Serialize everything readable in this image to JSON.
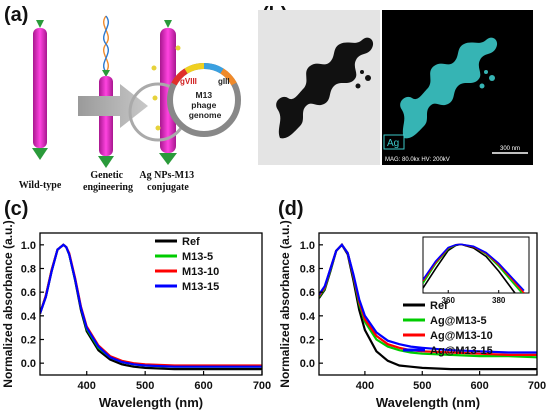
{
  "panels": {
    "a": {
      "label": "(a)",
      "stages": [
        "Wild-type",
        "Genetic\nengineering",
        "Ag NPs-M13\nconjugate"
      ],
      "genome": {
        "title": "M13\nphage\ngenome",
        "gene_viii": "gVIII",
        "gene_iii": "gIII"
      }
    },
    "b": {
      "label": "(b)",
      "map_label": "Ag",
      "footer": "MAG: 80.0kx  HV: 200kV",
      "scale": "300 nm"
    }
  },
  "chart_data": [
    {
      "panel_label": "(c)",
      "type": "line",
      "xlabel": "Wavelength (nm)",
      "ylabel": "Normalized absorbance (a.u.)",
      "xlim": [
        320,
        700
      ],
      "ylim": [
        -0.1,
        1.1
      ],
      "xticks": [
        400,
        500,
        600,
        700
      ],
      "yticks": [
        0.0,
        0.2,
        0.4,
        0.6,
        0.8,
        1.0
      ],
      "legend_position": "right",
      "series": [
        {
          "name": "Ref",
          "color": "#000000",
          "x": [
            320,
            330,
            340,
            350,
            360,
            365,
            370,
            380,
            390,
            400,
            420,
            440,
            460,
            480,
            500,
            550,
            600,
            650,
            700
          ],
          "y": [
            0.42,
            0.56,
            0.78,
            0.96,
            1.0,
            0.98,
            0.92,
            0.7,
            0.45,
            0.27,
            0.11,
            0.03,
            -0.01,
            -0.03,
            -0.04,
            -0.05,
            -0.05,
            -0.05,
            -0.05
          ]
        },
        {
          "name": "M13-5",
          "color": "#00cc00",
          "x": [
            320,
            330,
            340,
            350,
            360,
            365,
            370,
            380,
            390,
            400,
            420,
            440,
            460,
            480,
            500,
            550,
            600,
            650,
            700
          ],
          "y": [
            0.42,
            0.57,
            0.79,
            0.96,
            1.0,
            0.98,
            0.92,
            0.71,
            0.47,
            0.29,
            0.13,
            0.05,
            0.01,
            -0.01,
            -0.02,
            -0.03,
            -0.03,
            -0.03,
            -0.03
          ]
        },
        {
          "name": "M13-10",
          "color": "#ff0000",
          "x": [
            320,
            330,
            340,
            350,
            360,
            365,
            370,
            380,
            390,
            400,
            420,
            440,
            460,
            480,
            500,
            550,
            600,
            650,
            700
          ],
          "y": [
            0.42,
            0.57,
            0.79,
            0.96,
            1.0,
            0.98,
            0.93,
            0.72,
            0.48,
            0.31,
            0.15,
            0.06,
            0.02,
            0.0,
            -0.01,
            -0.02,
            -0.02,
            -0.02,
            -0.02
          ]
        },
        {
          "name": "M13-15",
          "color": "#0000ff",
          "x": [
            320,
            330,
            340,
            350,
            360,
            365,
            370,
            380,
            390,
            400,
            420,
            440,
            460,
            480,
            500,
            550,
            600,
            650,
            700
          ],
          "y": [
            0.42,
            0.56,
            0.78,
            0.96,
            1.0,
            0.98,
            0.92,
            0.71,
            0.47,
            0.3,
            0.14,
            0.05,
            0.01,
            -0.01,
            -0.02,
            -0.03,
            -0.03,
            -0.03,
            -0.03
          ]
        }
      ]
    },
    {
      "panel_label": "(d)",
      "type": "line",
      "xlabel": "Wavelength (nm)",
      "ylabel": "Normalized absorbance (a.u.)",
      "xlim": [
        320,
        700
      ],
      "ylim": [
        -0.1,
        1.1
      ],
      "xticks": [
        400,
        500,
        600,
        700
      ],
      "yticks": [
        0.0,
        0.2,
        0.4,
        0.6,
        0.8,
        1.0
      ],
      "legend_position": "bottom-right",
      "series": [
        {
          "name": "Ref",
          "color": "#000000",
          "x": [
            320,
            330,
            340,
            350,
            360,
            370,
            380,
            390,
            400,
            420,
            440,
            460,
            480,
            500,
            550,
            600,
            650,
            700
          ],
          "y": [
            0.55,
            0.62,
            0.78,
            0.95,
            1.0,
            0.92,
            0.7,
            0.45,
            0.28,
            0.1,
            0.02,
            -0.02,
            -0.03,
            -0.04,
            -0.05,
            -0.05,
            -0.05,
            -0.05
          ]
        },
        {
          "name": "Ag@M13-5",
          "color": "#00cc00",
          "x": [
            320,
            330,
            340,
            350,
            360,
            370,
            380,
            390,
            400,
            420,
            440,
            460,
            480,
            500,
            550,
            600,
            650,
            700
          ],
          "y": [
            0.56,
            0.63,
            0.79,
            0.95,
            1.0,
            0.93,
            0.73,
            0.5,
            0.35,
            0.2,
            0.14,
            0.11,
            0.09,
            0.08,
            0.07,
            0.06,
            0.06,
            0.05
          ]
        },
        {
          "name": "Ag@M13-10",
          "color": "#ff0000",
          "x": [
            320,
            330,
            340,
            350,
            360,
            370,
            380,
            390,
            400,
            420,
            440,
            460,
            480,
            500,
            550,
            600,
            650,
            700
          ],
          "y": [
            0.57,
            0.64,
            0.8,
            0.95,
            1.0,
            0.93,
            0.74,
            0.52,
            0.37,
            0.23,
            0.16,
            0.13,
            0.11,
            0.1,
            0.09,
            0.08,
            0.07,
            0.07
          ]
        },
        {
          "name": "Ag@M13-15",
          "color": "#0000ff",
          "x": [
            320,
            330,
            340,
            350,
            360,
            370,
            380,
            390,
            400,
            420,
            440,
            460,
            480,
            500,
            550,
            600,
            650,
            700
          ],
          "y": [
            0.58,
            0.65,
            0.8,
            0.95,
            1.0,
            0.93,
            0.75,
            0.54,
            0.4,
            0.26,
            0.19,
            0.16,
            0.14,
            0.13,
            0.11,
            0.1,
            0.09,
            0.09
          ]
        }
      ],
      "inset": {
        "xlim": [
          350,
          392
        ],
        "ylim": [
          0.8,
          1.03
        ],
        "xticks": [
          360,
          380
        ],
        "series": [
          {
            "color": "#000000",
            "x": [
              350,
              355,
              360,
              363,
              365,
              370,
              375,
              380,
              385,
              390
            ],
            "y": [
              0.82,
              0.9,
              0.975,
              0.995,
              1.0,
              0.985,
              0.95,
              0.89,
              0.82,
              0.75
            ]
          },
          {
            "color": "#00cc00",
            "x": [
              350,
              355,
              360,
              363,
              365,
              370,
              375,
              380,
              385,
              390
            ],
            "y": [
              0.84,
              0.92,
              0.982,
              0.997,
              1.0,
              0.99,
              0.96,
              0.91,
              0.85,
              0.79
            ]
          },
          {
            "color": "#ff0000",
            "x": [
              350,
              355,
              360,
              363,
              365,
              370,
              375,
              380,
              385,
              390
            ],
            "y": [
              0.85,
              0.925,
              0.985,
              0.998,
              1.0,
              0.99,
              0.963,
              0.917,
              0.86,
              0.8
            ]
          },
          {
            "color": "#0000ff",
            "x": [
              350,
              355,
              360,
              363,
              365,
              370,
              375,
              380,
              385,
              390
            ],
            "y": [
              0.855,
              0.93,
              0.987,
              0.998,
              1.0,
              0.992,
              0.966,
              0.922,
              0.866,
              0.81
            ]
          }
        ]
      }
    }
  ]
}
